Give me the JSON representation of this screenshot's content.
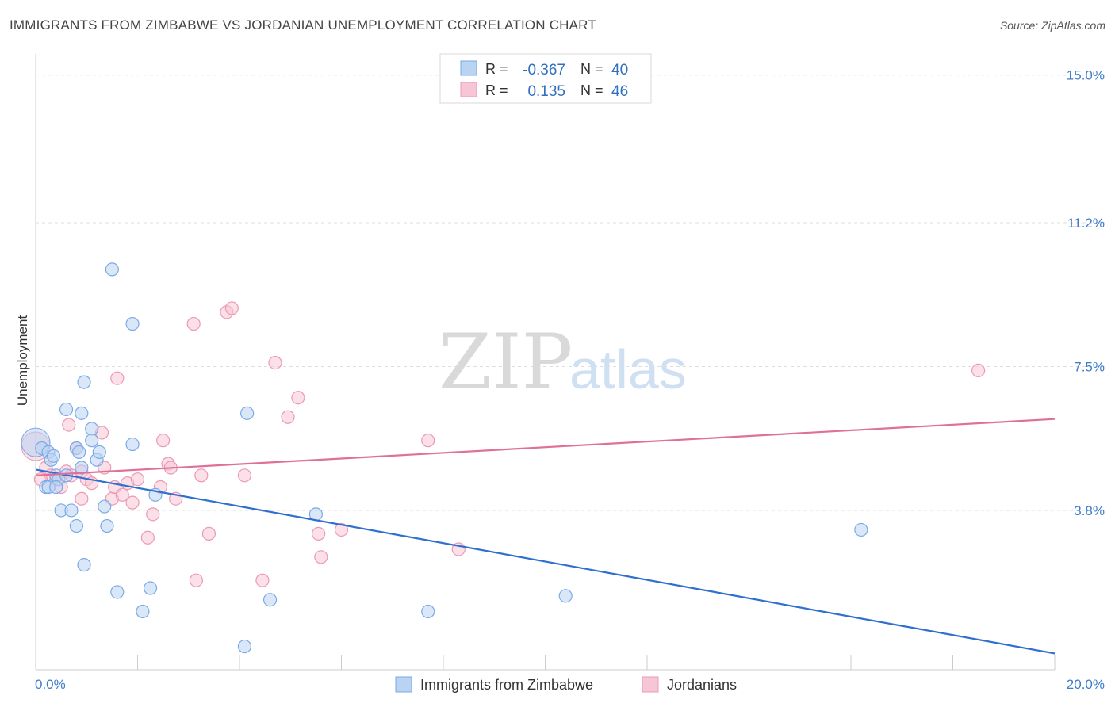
{
  "header": {
    "title": "IMMIGRANTS FROM ZIMBABWE VS JORDANIAN UNEMPLOYMENT CORRELATION CHART",
    "source": "Source: ZipAtlas.com"
  },
  "watermark": {
    "zip": "ZIP",
    "atlas": "atlas"
  },
  "colors": {
    "blue_fill": "#b9d3f3",
    "blue_stroke": "#7aaae6",
    "blue_line": "#2f6fcf",
    "pink_fill": "#f7c6d6",
    "pink_stroke": "#ec99b4",
    "pink_line": "#e0709a",
    "grid": "#dddddd",
    "tick_label": "#3d7cc9"
  },
  "legend_box": {
    "row1": {
      "r_label": "R = ",
      "r_value": "-0.367",
      "n_label": "N = ",
      "n_value": "40"
    },
    "row2": {
      "r_label": "R = ",
      "r_value": "0.135",
      "n_label": "N = ",
      "n_value": "46"
    }
  },
  "chart_data": {
    "type": "scatter",
    "title": "IMMIGRANTS FROM ZIMBABWE VS JORDANIAN UNEMPLOYMENT CORRELATION CHART",
    "xlabel": "",
    "ylabel": "Unemployment",
    "xlim": [
      0,
      20
    ],
    "ylim": [
      -0.3,
      15.3
    ],
    "x_tick_labels": [
      "0.0%",
      "20.0%"
    ],
    "y_ticks": [
      3.8,
      7.5,
      11.2,
      15.0
    ],
    "y_tick_labels": [
      "3.8%",
      "7.5%",
      "11.2%",
      "15.0%"
    ],
    "grid": true,
    "legend_position": "bottom-center",
    "series": [
      {
        "name": "Immigrants from Zimbabwe",
        "color": "#7aaae6",
        "r": -0.367,
        "n": 40,
        "trend": {
          "x": [
            0,
            20
          ],
          "y": [
            4.85,
            0.12
          ]
        },
        "points": [
          [
            0.12,
            5.4
          ],
          [
            0.25,
            5.3
          ],
          [
            0.3,
            5.1
          ],
          [
            0.35,
            5.2
          ],
          [
            0.4,
            4.7
          ],
          [
            0.2,
            4.4
          ],
          [
            0.25,
            4.4
          ],
          [
            0.45,
            4.6
          ],
          [
            0.6,
            4.7
          ],
          [
            0.5,
            3.8
          ],
          [
            0.7,
            3.8
          ],
          [
            0.8,
            3.4
          ],
          [
            0.95,
            2.4
          ],
          [
            0.6,
            6.4
          ],
          [
            0.9,
            6.3
          ],
          [
            0.95,
            7.1
          ],
          [
            1.1,
            5.9
          ],
          [
            1.1,
            5.6
          ],
          [
            1.2,
            5.1
          ],
          [
            1.25,
            5.3
          ],
          [
            0.8,
            5.4
          ],
          [
            0.85,
            5.3
          ],
          [
            0.9,
            4.9
          ],
          [
            1.4,
            3.4
          ],
          [
            1.35,
            3.9
          ],
          [
            1.6,
            1.7
          ],
          [
            1.5,
            10.0
          ],
          [
            1.9,
            8.6
          ],
          [
            1.9,
            5.5
          ],
          [
            2.1,
            1.2
          ],
          [
            2.25,
            1.8
          ],
          [
            2.35,
            4.2
          ],
          [
            4.15,
            6.3
          ],
          [
            4.1,
            0.3
          ],
          [
            4.6,
            1.5
          ],
          [
            5.5,
            3.7
          ],
          [
            7.7,
            1.2
          ],
          [
            10.4,
            1.6
          ],
          [
            16.2,
            3.3
          ],
          [
            0.4,
            4.4
          ]
        ],
        "big_point": [
          0.0,
          5.55
        ]
      },
      {
        "name": "Jordanians",
        "color": "#ec99b4",
        "r": 0.135,
        "n": 46,
        "trend": {
          "x": [
            0,
            20
          ],
          "y": [
            4.7,
            6.15
          ]
        },
        "points": [
          [
            0.2,
            4.9
          ],
          [
            0.3,
            4.7
          ],
          [
            0.4,
            4.6
          ],
          [
            0.5,
            4.4
          ],
          [
            0.6,
            4.8
          ],
          [
            0.7,
            4.7
          ],
          [
            0.8,
            5.4
          ],
          [
            0.9,
            4.8
          ],
          [
            1.0,
            4.6
          ],
          [
            1.1,
            4.5
          ],
          [
            0.9,
            4.1
          ],
          [
            0.65,
            6.0
          ],
          [
            1.3,
            5.8
          ],
          [
            1.35,
            4.9
          ],
          [
            1.5,
            4.1
          ],
          [
            1.55,
            4.4
          ],
          [
            1.6,
            7.2
          ],
          [
            1.7,
            4.2
          ],
          [
            1.8,
            4.5
          ],
          [
            1.9,
            4.0
          ],
          [
            2.0,
            4.6
          ],
          [
            2.2,
            3.1
          ],
          [
            2.3,
            3.7
          ],
          [
            2.45,
            4.4
          ],
          [
            2.5,
            5.6
          ],
          [
            2.6,
            5.0
          ],
          [
            2.65,
            4.9
          ],
          [
            2.75,
            4.1
          ],
          [
            3.1,
            8.6
          ],
          [
            3.15,
            2.0
          ],
          [
            3.25,
            4.7
          ],
          [
            3.4,
            3.2
          ],
          [
            3.75,
            8.9
          ],
          [
            3.85,
            9.0
          ],
          [
            4.1,
            4.7
          ],
          [
            4.45,
            2.0
          ],
          [
            4.7,
            7.6
          ],
          [
            4.95,
            6.2
          ],
          [
            5.15,
            6.7
          ],
          [
            5.55,
            3.2
          ],
          [
            5.6,
            2.6
          ],
          [
            6.0,
            3.3
          ],
          [
            7.7,
            5.6
          ],
          [
            8.3,
            2.8
          ],
          [
            18.5,
            7.4
          ],
          [
            0.1,
            4.6
          ]
        ],
        "big_point": [
          0.0,
          5.45
        ]
      }
    ]
  }
}
